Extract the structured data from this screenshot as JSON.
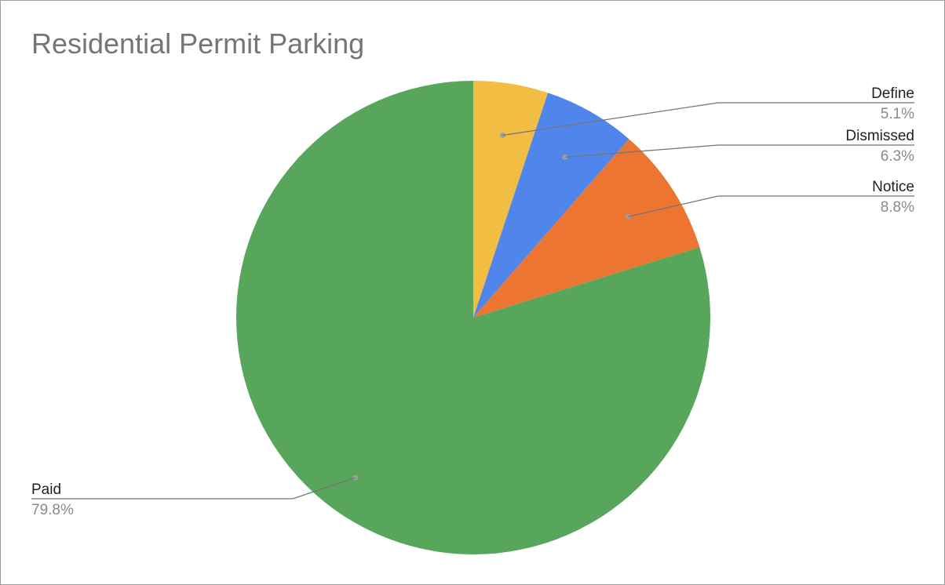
{
  "chart_data": {
    "type": "pie",
    "title": "Residential Permit Parking",
    "start_angle_deg": 0,
    "direction": "clockwise",
    "slices": [
      {
        "label": "Define",
        "value": 5.1,
        "pct_label": "5.1%",
        "color": "#f1bd42",
        "label_side": "right"
      },
      {
        "label": "Dismissed",
        "value": 6.3,
        "pct_label": "6.3%",
        "color": "#5085ec",
        "label_side": "right"
      },
      {
        "label": "Notice",
        "value": 8.8,
        "pct_label": "8.8%",
        "color": "#ed7532",
        "label_side": "right"
      },
      {
        "label": "Paid",
        "value": 79.8,
        "pct_label": "79.8%",
        "color": "#58a65c",
        "label_side": "left"
      }
    ],
    "legend": "labeled slices with leader lines"
  }
}
